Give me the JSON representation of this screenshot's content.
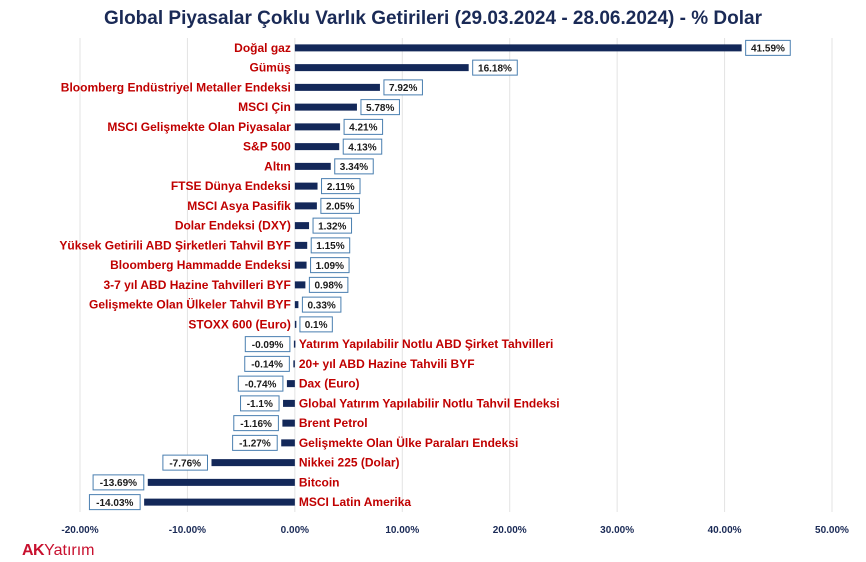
{
  "chart_data": {
    "type": "bar",
    "orientation": "horizontal",
    "title": "Global Piyasalar Çoklu Varlık Getirileri (29.03.2024 - 28.06.2024) - % Dolar",
    "categories": [
      "Doğal gaz",
      "Gümüş",
      "Bloomberg Endüstriyel Metaller Endeksi",
      "MSCI Çin",
      "MSCI Gelişmekte Olan Piyasalar",
      "S&P 500",
      "Altın",
      "FTSE Dünya Endeksi",
      "MSCI Asya Pasifik",
      "Dolar Endeksi (DXY)",
      "Yüksek Getirili ABD Şirketleri Tahvil BYF",
      "Bloomberg Hammadde Endeksi",
      "3-7 yıl ABD Hazine Tahvilleri BYF",
      "Gelişmekte Olan Ülkeler Tahvil BYF",
      "STOXX 600 (Euro)",
      "Yatırım Yapılabilir Notlu  ABD Şirket Tahvilleri",
      "20+ yıl ABD Hazine Tahvili BYF",
      "Dax (Euro)",
      "Global Yatırım Yapılabilir Notlu Tahvil Endeksi",
      "Brent Petrol",
      "Gelişmekte Olan Ülke Paraları Endeksi",
      "Nikkei 225 (Dolar)",
      "Bitcoin",
      "MSCI Latin Amerika"
    ],
    "values": [
      41.59,
      16.18,
      7.92,
      5.78,
      4.21,
      4.13,
      3.34,
      2.11,
      2.05,
      1.32,
      1.15,
      1.09,
      0.98,
      0.33,
      0.1,
      -0.09,
      -0.14,
      -0.74,
      -1.1,
      -1.16,
      -1.27,
      -7.76,
      -13.69,
      -14.03
    ],
    "value_labels": [
      "41.59%",
      "16.18%",
      "7.92%",
      "5.78%",
      "4.21%",
      "4.13%",
      "3.34%",
      "2.11%",
      "2.05%",
      "1.32%",
      "1.15%",
      "1.09%",
      "0.98%",
      "0.33%",
      "0.1%",
      "-0.09%",
      "-0.14%",
      "-0.74%",
      "-1.1%",
      "-1.16%",
      "-1.27%",
      "-7.76%",
      "-13.69%",
      "-14.03%"
    ],
    "x_ticks": [
      -20,
      -10,
      0,
      10,
      20,
      30,
      40,
      50
    ],
    "x_tick_labels": [
      "-20.00%",
      "-10.00%",
      "0.00%",
      "10.00%",
      "20.00%",
      "30.00%",
      "40.00%",
      "50.00%"
    ],
    "xlim": [
      -20,
      50
    ],
    "grid": "vertical",
    "legend": "none",
    "colors": {
      "bar": "#132859",
      "category_label": "#c00000",
      "label_box_border": "#4a7fb0",
      "title": "#1a2a56",
      "axis_text": "#1a2a56",
      "grid": "#e3e3e3"
    }
  },
  "logo": {
    "brand": "AK",
    "rest": "Yatırım",
    "color": "#c8102e"
  }
}
